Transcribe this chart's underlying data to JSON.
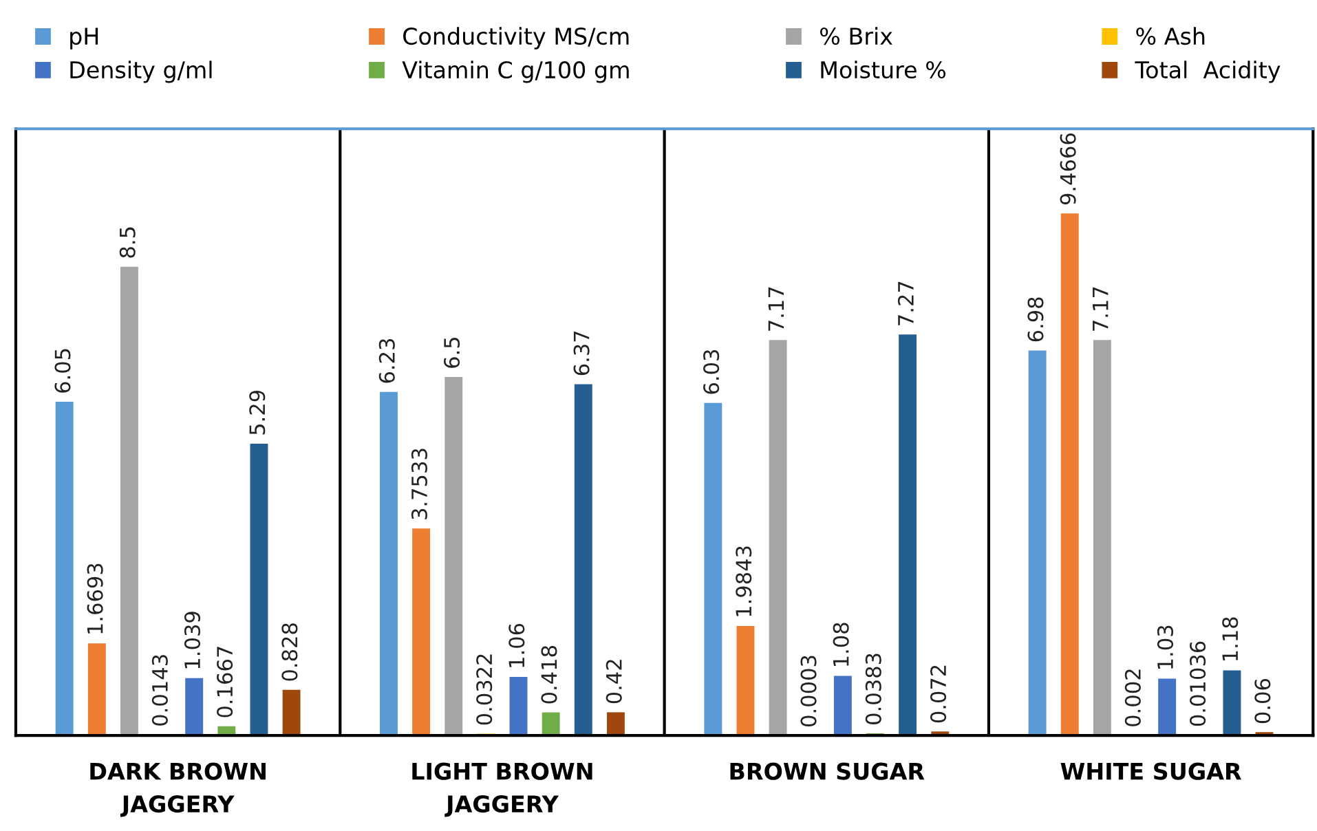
{
  "chart_data": {
    "type": "bar",
    "categories": [
      "DARK BROWN\nJAGGERY",
      "LIGHT BROWN\nJAGGERY",
      "BROWN SUGAR",
      "WHITE SUGAR"
    ],
    "series": [
      {
        "name": "pH",
        "color": "#5b9bd5",
        "values": [
          6.05,
          6.23,
          6.03,
          6.98
        ]
      },
      {
        "name": "Conductivity MS/cm",
        "color": "#ed7d31",
        "values": [
          1.6693,
          3.7533,
          1.9843,
          9.4666
        ]
      },
      {
        "name": "% Brix",
        "color": "#a5a5a5",
        "values": [
          8.5,
          6.5,
          7.17,
          7.17
        ]
      },
      {
        "name": "% Ash",
        "color": "#ffc000",
        "values": [
          0.0143,
          0.0322,
          0.0003,
          0.002
        ]
      },
      {
        "name": "Density g/ml",
        "color": "#4472c4",
        "values": [
          1.039,
          1.06,
          1.08,
          1.03
        ]
      },
      {
        "name": "Vitamin C g/100 gm",
        "color": "#70ad47",
        "values": [
          0.1667,
          0.418,
          0.0383,
          0.01036
        ]
      },
      {
        "name": "Moisture %",
        "color": "#255e91",
        "values": [
          5.29,
          6.37,
          7.27,
          1.18
        ]
      },
      {
        "name": "Total  Acidity",
        "color": "#9e480e",
        "values": [
          0.828,
          0.42,
          0.072,
          0.06
        ]
      }
    ],
    "ylim": [
      0,
      11
    ],
    "data_labels": true,
    "grid": "x",
    "legend": "top",
    "tick_labels": "x"
  }
}
